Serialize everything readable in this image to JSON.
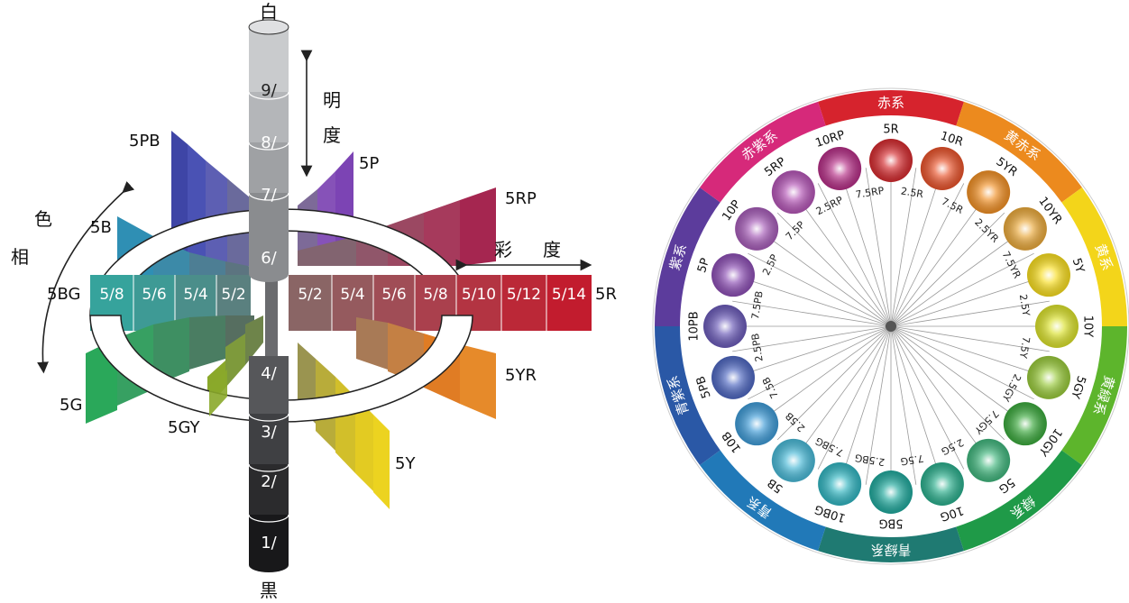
{
  "solid": {
    "white_label": "白",
    "black_label": "黒",
    "value_title_1": "明",
    "value_title_2": "度",
    "chroma_title_1": "彩",
    "chroma_title_2": "度",
    "hue_title_1": "色",
    "hue_title_2": "相",
    "value_steps": [
      {
        "label": "9/",
        "color": "#c9cbcd"
      },
      {
        "label": "8/",
        "color": "#b4b6b9"
      },
      {
        "label": "7/",
        "color": "#9fa1a4"
      },
      {
        "label": "6/",
        "color": "#8a8c8f"
      },
      {
        "label": "4/",
        "color": "#56575a"
      },
      {
        "label": "3/",
        "color": "#3f4043"
      },
      {
        "label": "2/",
        "color": "#2b2b2d"
      },
      {
        "label": "1/",
        "color": "#18181a"
      }
    ],
    "chroma_right": [
      "5/2",
      "5/4",
      "5/6",
      "5/8",
      "5/10",
      "5/12",
      "5/14"
    ],
    "chroma_left": [
      "5/8",
      "5/6",
      "5/4",
      "5/2"
    ],
    "hue_labels": {
      "5PB": "5PB",
      "5P": "5P",
      "5RP": "5RP",
      "5B": "5B",
      "5BG": "5BG",
      "5R": "5R",
      "5YR": "5YR",
      "5G": "5G",
      "5GY": "5GY",
      "5Y": "5Y"
    },
    "colors": {
      "R": "#b4202c",
      "RP": "#a9385a",
      "P": "#7a4bb0",
      "PB": "#4f52b0",
      "B": "#3c8fb0",
      "BG": "#2c9a8c",
      "G": "#35a364",
      "GY": "#7fae2a",
      "Y": "#e3cc20",
      "YR": "#e07b22"
    }
  },
  "wheel": {
    "groups": [
      {
        "label": "赤系",
        "color": "#d6232d"
      },
      {
        "label": "黄赤系",
        "color": "#ec8a1e"
      },
      {
        "label": "黄系",
        "color": "#f3d51a"
      },
      {
        "label": "黄緑系",
        "color": "#5db52c"
      },
      {
        "label": "緑系",
        "color": "#1f9a48"
      },
      {
        "label": "青緑系",
        "color": "#1f7a72"
      },
      {
        "label": "青系",
        "color": "#2179b8"
      },
      {
        "label": "青紫系",
        "color": "#2a58a6"
      },
      {
        "label": "紫系",
        "color": "#5c3c9c"
      },
      {
        "label": "赤紫系",
        "color": "#d6297a"
      }
    ],
    "hues": [
      {
        "label": "5R",
        "color": "#d42a2e"
      },
      {
        "label": "10R",
        "color": "#e8522a"
      },
      {
        "label": "5YR",
        "color": "#f08f24"
      },
      {
        "label": "10YR",
        "color": "#e9a83a"
      },
      {
        "label": "5Y",
        "color": "#f7dc1e"
      },
      {
        "label": "10Y",
        "color": "#d9e02a"
      },
      {
        "label": "5GY",
        "color": "#98c93a"
      },
      {
        "label": "10GY",
        "color": "#3aa83c"
      },
      {
        "label": "5G",
        "color": "#3fb57c"
      },
      {
        "label": "10G",
        "color": "#2aae8c"
      },
      {
        "label": "5BG",
        "color": "#1fa89c"
      },
      {
        "label": "10BG",
        "color": "#30b4c0"
      },
      {
        "label": "5B",
        "color": "#47b8d6"
      },
      {
        "label": "10B",
        "color": "#3d9ad6"
      },
      {
        "label": "5PB",
        "color": "#4d66c0"
      },
      {
        "label": "10PB",
        "color": "#6a5ab8"
      },
      {
        "label": "5P",
        "color": "#8c4eb4"
      },
      {
        "label": "10P",
        "color": "#a65cb8"
      },
      {
        "label": "5RP",
        "color": "#b455b6"
      },
      {
        "label": "10RP",
        "color": "#b52e86"
      }
    ],
    "spokes": [
      "2.5R",
      "7.5R",
      "2.5YR",
      "7.5YR",
      "2.5Y",
      "7.5Y",
      "2.5GY",
      "7.5GY",
      "2.5G",
      "7.5G",
      "2.5BG",
      "7.5BG",
      "2.5B",
      "7.5B",
      "2.5PB",
      "7.5PB",
      "2.5P",
      "7.5P",
      "2.5RP",
      "7.5RP"
    ]
  }
}
